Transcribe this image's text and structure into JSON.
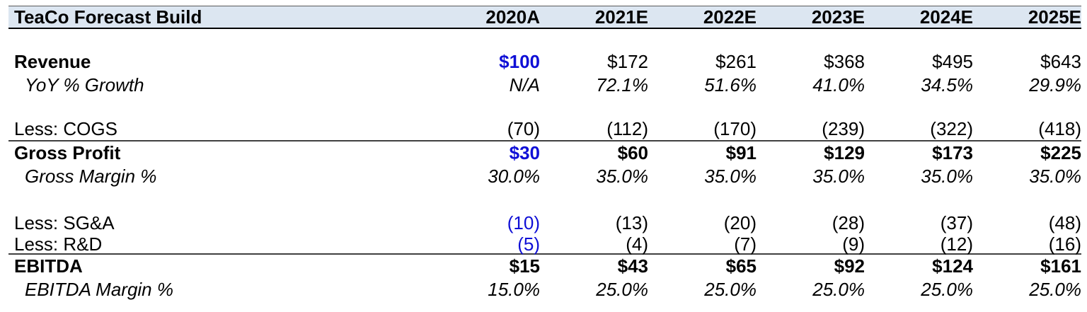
{
  "colors": {
    "input_blue": "#0F0FD6",
    "header_fill": "#DCE6F1",
    "text": "#000000"
  },
  "header": {
    "title": "TeaCo Forecast Build",
    "columns": [
      "2020A",
      "2021E",
      "2022E",
      "2023E",
      "2024E",
      "2025E"
    ]
  },
  "rows": {
    "revenue": {
      "label": "Revenue",
      "values": [
        "$100",
        "$172",
        "$261",
        "$368",
        "$495",
        "$643"
      ]
    },
    "yoy_growth": {
      "label": "YoY % Growth",
      "values": [
        "N/A",
        "72.1%",
        "51.6%",
        "41.0%",
        "34.5%",
        "29.9%"
      ]
    },
    "cogs": {
      "label": "Less: COGS",
      "values": [
        "(70)",
        "(112)",
        "(170)",
        "(239)",
        "(322)",
        "(418)"
      ]
    },
    "gross_profit": {
      "label": "Gross Profit",
      "values": [
        "$30",
        "$60",
        "$91",
        "$129",
        "$173",
        "$225"
      ]
    },
    "gross_margin": {
      "label": "Gross Margin %",
      "values": [
        "30.0%",
        "35.0%",
        "35.0%",
        "35.0%",
        "35.0%",
        "35.0%"
      ]
    },
    "sga": {
      "label": "Less: SG&A",
      "values": [
        "(10)",
        "(13)",
        "(20)",
        "(28)",
        "(37)",
        "(48)"
      ]
    },
    "rd": {
      "label": "Less: R&D",
      "values": [
        "(5)",
        "(4)",
        "(7)",
        "(9)",
        "(12)",
        "(16)"
      ]
    },
    "ebitda": {
      "label": "EBITDA",
      "values": [
        "$15",
        "$43",
        "$65",
        "$92",
        "$124",
        "$161"
      ]
    },
    "ebitda_margin": {
      "label": "EBITDA Margin %",
      "values": [
        "15.0%",
        "25.0%",
        "25.0%",
        "25.0%",
        "25.0%",
        "25.0%"
      ]
    }
  }
}
